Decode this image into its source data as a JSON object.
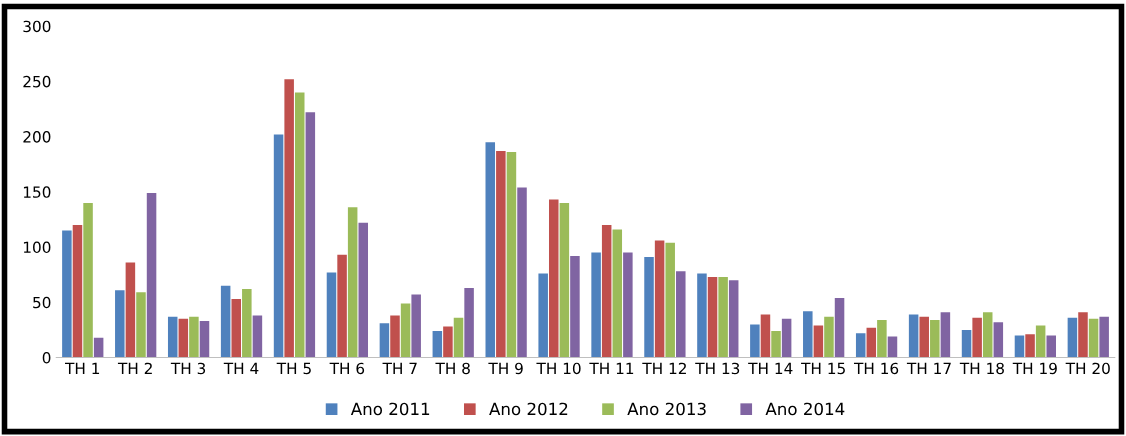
{
  "chart_data": {
    "type": "bar",
    "categories": [
      "TH 1",
      "TH 2",
      "TH 3",
      "TH 4",
      "TH 5",
      "TH 6",
      "TH 7",
      "TH 8",
      "TH 9",
      "TH 10",
      "TH 11",
      "TH 12",
      "TH 13",
      "TH 14",
      "TH 15",
      "TH 16",
      "TH 17",
      "TH 18",
      "TH 19",
      "TH 20"
    ],
    "series": [
      {
        "name": "Ano 2011",
        "color": "#4f81bd",
        "values": [
          115,
          61,
          37,
          65,
          202,
          77,
          31,
          24,
          195,
          76,
          95,
          91,
          76,
          30,
          42,
          22,
          39,
          25,
          20,
          36
        ]
      },
      {
        "name": "Ano 2012",
        "color": "#c0504d",
        "values": [
          120,
          86,
          35,
          53,
          252,
          93,
          38,
          28,
          187,
          143,
          120,
          106,
          73,
          39,
          29,
          27,
          37,
          36,
          21,
          41
        ]
      },
      {
        "name": "Ano 2013",
        "color": "#9bbb59",
        "values": [
          140,
          59,
          37,
          62,
          240,
          136,
          49,
          36,
          186,
          140,
          116,
          104,
          73,
          24,
          37,
          34,
          34,
          41,
          29,
          35
        ]
      },
      {
        "name": "Ano 2014",
        "color": "#8064a2",
        "values": [
          18,
          149,
          33,
          38,
          222,
          122,
          57,
          63,
          154,
          92,
          95,
          78,
          70,
          35,
          54,
          19,
          41,
          32,
          20,
          37
        ]
      }
    ],
    "ylim": [
      0,
      300
    ],
    "yticks": [
      0,
      50,
      100,
      150,
      200,
      250,
      300
    ],
    "grid": false,
    "legend": "bottom"
  }
}
